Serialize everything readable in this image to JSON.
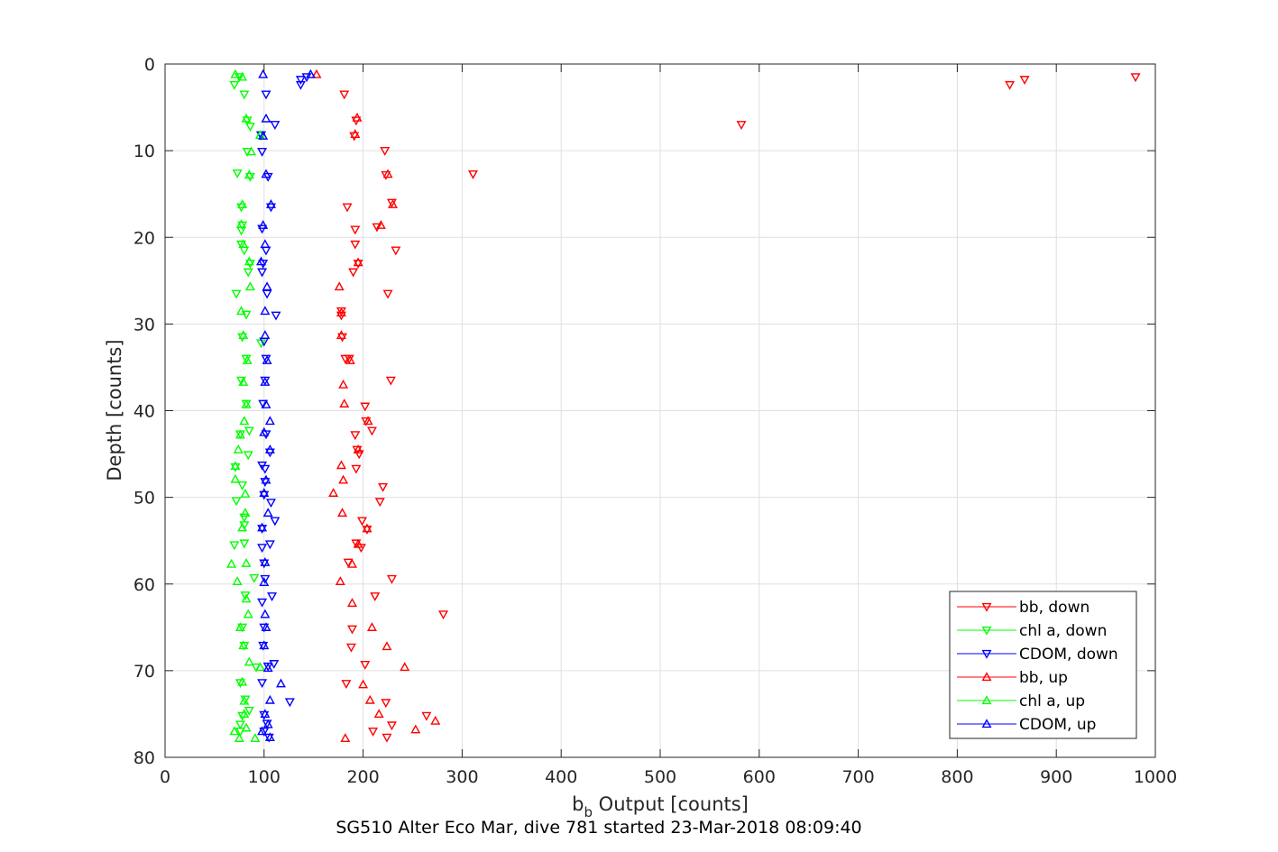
{
  "chart_data": {
    "type": "scatter",
    "title": "",
    "caption": "SG510 Alter Eco Mar, dive 781 started 23-Mar-2018 08:09:40",
    "xlabel": {
      "main": "b",
      "sub": "b",
      "rest": " Output [counts]"
    },
    "ylabel": "Depth [counts]",
    "xlim": [
      0,
      1000
    ],
    "ylim": [
      0,
      80
    ],
    "y_reversed": true,
    "grid": true,
    "legend_position": "bottom-right",
    "x_ticks": [
      "0",
      "100",
      "200",
      "300",
      "400",
      "500",
      "600",
      "700",
      "800",
      "900",
      "1000"
    ],
    "y_ticks": [
      "0",
      "10",
      "20",
      "30",
      "40",
      "50",
      "60",
      "70",
      "80"
    ],
    "series": [
      {
        "name": "bb, down",
        "color": "#ff0000",
        "marker": "triangle-down",
        "points": [
          [
            980,
            1.5
          ],
          [
            868,
            1.8
          ],
          [
            853,
            2.4
          ],
          [
            582,
            7
          ],
          [
            181,
            3.5
          ],
          [
            193,
            6.5
          ],
          [
            191,
            8.3
          ],
          [
            222,
            10
          ],
          [
            311,
            12.7
          ],
          [
            223,
            12.8
          ],
          [
            229,
            16
          ],
          [
            184,
            16.5
          ],
          [
            214,
            18.8
          ],
          [
            192,
            19.1
          ],
          [
            192,
            20.8
          ],
          [
            233,
            21.5
          ],
          [
            195,
            23
          ],
          [
            190,
            24
          ],
          [
            225,
            26.5
          ],
          [
            178,
            28.5
          ],
          [
            178,
            29
          ],
          [
            179,
            31.5
          ],
          [
            182,
            34
          ],
          [
            186,
            34
          ],
          [
            228,
            36.5
          ],
          [
            202,
            39.5
          ],
          [
            203,
            41.2
          ],
          [
            209,
            42.3
          ],
          [
            192,
            42.8
          ],
          [
            194,
            44.5
          ],
          [
            196,
            45
          ],
          [
            193,
            46.7
          ],
          [
            220,
            48.8
          ],
          [
            217,
            50.5
          ],
          [
            199,
            52.7
          ],
          [
            204,
            53.7
          ],
          [
            193,
            55.3
          ],
          [
            198,
            55.8
          ],
          [
            185,
            57.5
          ],
          [
            229,
            59.4
          ],
          [
            212,
            61.4
          ],
          [
            281,
            63.5
          ],
          [
            189,
            65.2
          ],
          [
            188,
            67.3
          ],
          [
            202,
            69.3
          ],
          [
            183,
            71.5
          ],
          [
            223,
            73.7
          ],
          [
            264,
            75.2
          ],
          [
            229,
            76.3
          ],
          [
            210,
            77
          ],
          [
            224,
            77.7
          ]
        ]
      },
      {
        "name": "chl a, down",
        "color": "#00ff00",
        "marker": "triangle-down",
        "points": [
          [
            75,
            1.5
          ],
          [
            70,
            2.4
          ],
          [
            80,
            3.5
          ],
          [
            83,
            6.5
          ],
          [
            86,
            7.2
          ],
          [
            97,
            8.2
          ],
          [
            83,
            10.1
          ],
          [
            73,
            12.6
          ],
          [
            86,
            13
          ],
          [
            77,
            16.5
          ],
          [
            78,
            18.6
          ],
          [
            77,
            19.2
          ],
          [
            77,
            20.8
          ],
          [
            80,
            21.5
          ],
          [
            86,
            23
          ],
          [
            84,
            24
          ],
          [
            72,
            26.5
          ],
          [
            82,
            28.9
          ],
          [
            78,
            31.5
          ],
          [
            97,
            32.2
          ],
          [
            82,
            34
          ],
          [
            77,
            36.5
          ],
          [
            82,
            39.2
          ],
          [
            85,
            42.3
          ],
          [
            76,
            42.7
          ],
          [
            84,
            45.1
          ],
          [
            71,
            46.5
          ],
          [
            78,
            48.6
          ],
          [
            72,
            50.4
          ],
          [
            80,
            52.3
          ],
          [
            80,
            53.2
          ],
          [
            80,
            55.3
          ],
          [
            70,
            55.5
          ],
          [
            90,
            59.3
          ],
          [
            81,
            61.3
          ],
          [
            78,
            65
          ],
          [
            80,
            67.1
          ],
          [
            92,
            69.6
          ],
          [
            76,
            71.4
          ],
          [
            81,
            73.3
          ],
          [
            85,
            74.6
          ],
          [
            78,
            75.2
          ],
          [
            76,
            77
          ],
          [
            76,
            76.2
          ]
        ]
      },
      {
        "name": "CDOM, down",
        "color": "#0000ff",
        "marker": "triangle-down",
        "points": [
          [
            143,
            1.5
          ],
          [
            137,
            1.8
          ],
          [
            137,
            2.4
          ],
          [
            102,
            3.5
          ],
          [
            111,
            7
          ],
          [
            97,
            8.2
          ],
          [
            98,
            10.1
          ],
          [
            104,
            13
          ],
          [
            107,
            16.5
          ],
          [
            98,
            19
          ],
          [
            102,
            21.5
          ],
          [
            99,
            23
          ],
          [
            98,
            24
          ],
          [
            103,
            26.5
          ],
          [
            112,
            29
          ],
          [
            100,
            32
          ],
          [
            102,
            34
          ],
          [
            101,
            36.5
          ],
          [
            99,
            39.2
          ],
          [
            102,
            42.7
          ],
          [
            106,
            44.8
          ],
          [
            98,
            46.3
          ],
          [
            101,
            46.7
          ],
          [
            101,
            48.2
          ],
          [
            100,
            49.7
          ],
          [
            107,
            50.6
          ],
          [
            111,
            52.7
          ],
          [
            98,
            53.6
          ],
          [
            106,
            55.4
          ],
          [
            98,
            55.8
          ],
          [
            100,
            57.6
          ],
          [
            101,
            59.4
          ],
          [
            98,
            62.1
          ],
          [
            108,
            61.4
          ],
          [
            100,
            65
          ],
          [
            99,
            67.1
          ],
          [
            110,
            69.2
          ],
          [
            104,
            69.5
          ],
          [
            98,
            71.4
          ],
          [
            126,
            73.6
          ],
          [
            100,
            75.1
          ],
          [
            103,
            76.1
          ],
          [
            105,
            77.7
          ],
          [
            100,
            77
          ]
        ]
      },
      {
        "name": "bb, up",
        "color": "#ff0000",
        "marker": "triangle-up",
        "points": [
          [
            153,
            1.2
          ],
          [
            194,
            6.2
          ],
          [
            192,
            8.1
          ],
          [
            225,
            12.7
          ],
          [
            230,
            16.2
          ],
          [
            218,
            18.6
          ],
          [
            195,
            22.9
          ],
          [
            176,
            25.7
          ],
          [
            178,
            28.7
          ],
          [
            178,
            31.3
          ],
          [
            187,
            34.2
          ],
          [
            180,
            37
          ],
          [
            181,
            39.2
          ],
          [
            205,
            41.2
          ],
          [
            195,
            44.5
          ],
          [
            178,
            46.3
          ],
          [
            180,
            48
          ],
          [
            170,
            49.5
          ],
          [
            179,
            51.8
          ],
          [
            204,
            53.6
          ],
          [
            195,
            55.4
          ],
          [
            189,
            57.7
          ],
          [
            177,
            59.7
          ],
          [
            189,
            62.2
          ],
          [
            209,
            65
          ],
          [
            224,
            67.2
          ],
          [
            242,
            69.6
          ],
          [
            200,
            71.6
          ],
          [
            207,
            73.4
          ],
          [
            216,
            75
          ],
          [
            273,
            75.8
          ],
          [
            253,
            76.8
          ],
          [
            182,
            77.8
          ]
        ]
      },
      {
        "name": "chl a, up",
        "color": "#00ff00",
        "marker": "triangle-up",
        "points": [
          [
            71,
            1.2
          ],
          [
            78,
            1.5
          ],
          [
            82,
            6.3
          ],
          [
            96,
            8.2
          ],
          [
            87,
            10.1
          ],
          [
            85,
            12.8
          ],
          [
            78,
            16.2
          ],
          [
            77,
            18.5
          ],
          [
            79,
            20.8
          ],
          [
            85,
            22.8
          ],
          [
            86,
            25.7
          ],
          [
            77,
            28.5
          ],
          [
            79,
            31.3
          ],
          [
            83,
            34.2
          ],
          [
            79,
            36.7
          ],
          [
            82,
            39.3
          ],
          [
            80,
            41.2
          ],
          [
            76,
            42.8
          ],
          [
            74,
            44.5
          ],
          [
            71,
            46.4
          ],
          [
            71,
            47.9
          ],
          [
            81,
            49.6
          ],
          [
            81,
            51.8
          ],
          [
            78,
            53.5
          ],
          [
            82,
            57.6
          ],
          [
            67,
            57.7
          ],
          [
            73,
            59.7
          ],
          [
            82,
            61.7
          ],
          [
            84,
            63.5
          ],
          [
            76,
            65
          ],
          [
            79,
            67.1
          ],
          [
            85,
            69
          ],
          [
            96,
            69.6
          ],
          [
            78,
            71.3
          ],
          [
            80,
            73.5
          ],
          [
            80,
            75
          ],
          [
            82,
            76.6
          ],
          [
            70,
            77
          ],
          [
            91,
            77.8
          ],
          [
            75,
            77.8
          ]
        ]
      },
      {
        "name": "CDOM, up",
        "color": "#0000ff",
        "marker": "triangle-up",
        "points": [
          [
            99,
            1.2
          ],
          [
            147,
            1.2
          ],
          [
            102,
            6.3
          ],
          [
            99,
            8.3
          ],
          [
            102,
            12.7
          ],
          [
            107,
            16.2
          ],
          [
            99,
            18.6
          ],
          [
            101,
            20.8
          ],
          [
            97,
            22.8
          ],
          [
            103,
            25.7
          ],
          [
            101,
            28.5
          ],
          [
            101,
            31.3
          ],
          [
            103,
            34.2
          ],
          [
            101,
            36.7
          ],
          [
            102,
            39.3
          ],
          [
            106,
            41.2
          ],
          [
            100,
            42.5
          ],
          [
            106,
            44.5
          ],
          [
            102,
            48
          ],
          [
            100,
            49.5
          ],
          [
            104,
            51.8
          ],
          [
            98,
            53.5
          ],
          [
            101,
            57.5
          ],
          [
            100,
            59.8
          ],
          [
            101,
            63.5
          ],
          [
            102,
            65
          ],
          [
            100,
            67.1
          ],
          [
            104,
            69.7
          ],
          [
            117,
            71.5
          ],
          [
            106,
            73.4
          ],
          [
            101,
            75
          ],
          [
            104,
            76.2
          ],
          [
            98,
            77
          ],
          [
            106,
            77.7
          ]
        ]
      }
    ]
  }
}
